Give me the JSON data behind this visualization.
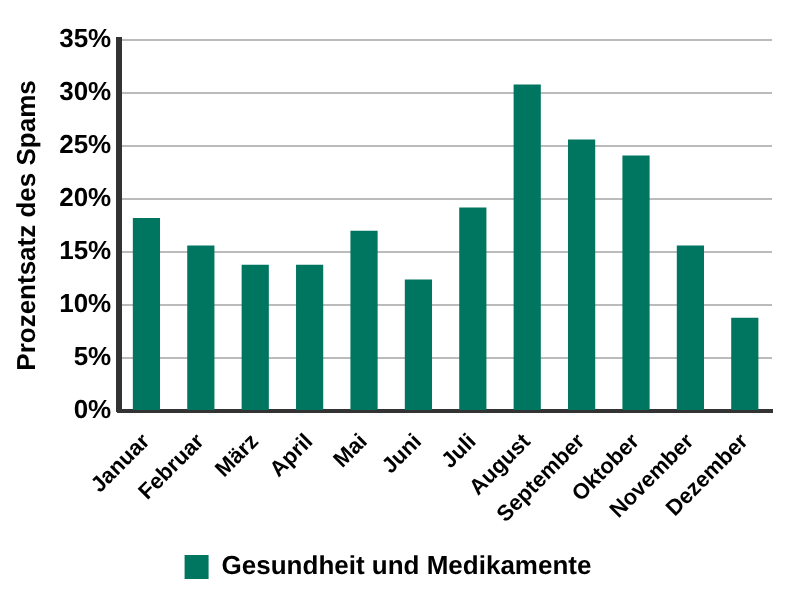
{
  "chart_data": {
    "type": "bar",
    "ylabel": "Prozentsatz des Spams",
    "categories": [
      "Januar",
      "Februar",
      "März",
      "April",
      "Mai",
      "Juni",
      "Juli",
      "August",
      "September",
      "Oktober",
      "November",
      "Dezember"
    ],
    "series": [
      {
        "name": "Gesundheit und Medikamente",
        "color": "#007560",
        "values": [
          18.2,
          15.6,
          13.8,
          13.8,
          17.0,
          12.4,
          19.2,
          30.8,
          25.6,
          24.1,
          15.6,
          8.8
        ]
      }
    ],
    "ylim": [
      0,
      35
    ],
    "yticks": [
      {
        "value": 0,
        "label": "0%"
      },
      {
        "value": 5,
        "label": "5%"
      },
      {
        "value": 10,
        "label": "10%"
      },
      {
        "value": 15,
        "label": "15%"
      },
      {
        "value": 20,
        "label": "20%"
      },
      {
        "value": 25,
        "label": "25%"
      },
      {
        "value": 30,
        "label": "30%"
      },
      {
        "value": 35,
        "label": "35%"
      }
    ],
    "grid": "y",
    "legend": "bottom"
  }
}
